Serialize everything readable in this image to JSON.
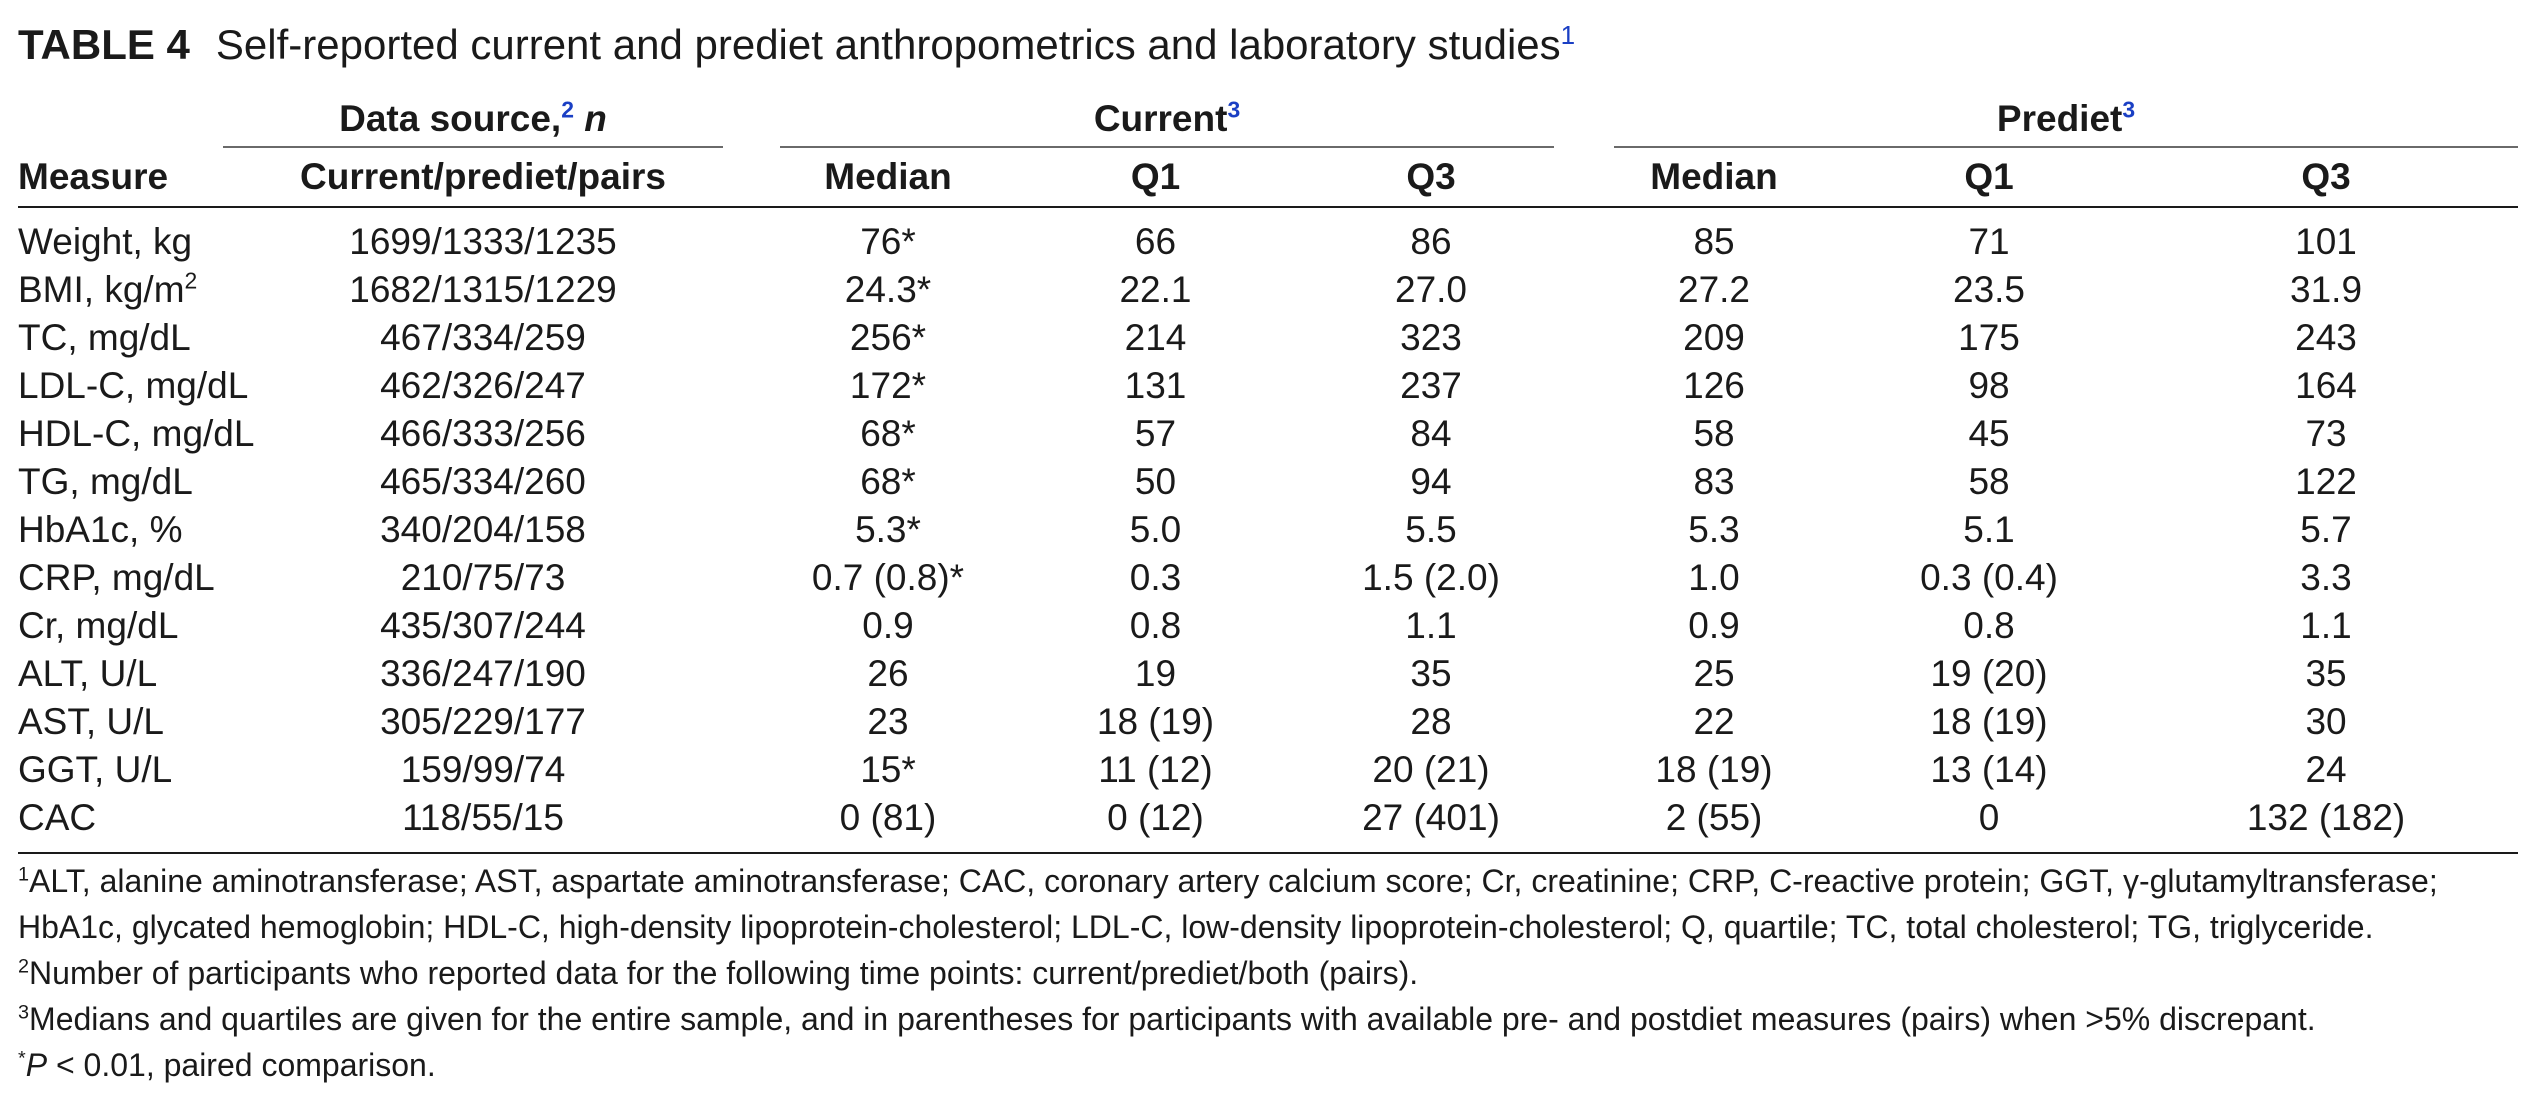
{
  "caption": {
    "label": "TABLE 4",
    "title": "Self-reported current and prediet anthropometrics and laboratory studies",
    "sup": "1"
  },
  "table": {
    "group_headers": {
      "data_source_text": "Data source,",
      "data_source_sup": "2",
      "data_source_n": "n",
      "current": "Current",
      "current_sup": "3",
      "prediet": "Prediet",
      "prediet_sup": "3"
    },
    "column_headers": {
      "measure": "Measure",
      "data_source": "Current/prediet/pairs",
      "current_median": "Median",
      "current_q1": "Q1",
      "current_q3": "Q3",
      "prediet_median": "Median",
      "prediet_q1": "Q1",
      "prediet_q3": "Q3"
    },
    "rows": [
      {
        "measure": "Weight, kg",
        "sup": "",
        "source": "1699/1333/1235",
        "cur_median": "76*",
        "cur_q1": "66",
        "cur_q3": "86",
        "pre_median": "85",
        "pre_q1": "71",
        "pre_q3": "101"
      },
      {
        "measure": "BMI, kg/m",
        "sup": "2",
        "source": "1682/1315/1229",
        "cur_median": "24.3*",
        "cur_q1": "22.1",
        "cur_q3": "27.0",
        "pre_median": "27.2",
        "pre_q1": "23.5",
        "pre_q3": "31.9"
      },
      {
        "measure": "TC, mg/dL",
        "sup": "",
        "source": "467/334/259",
        "cur_median": "256*",
        "cur_q1": "214",
        "cur_q3": "323",
        "pre_median": "209",
        "pre_q1": "175",
        "pre_q3": "243"
      },
      {
        "measure": "LDL-C, mg/dL",
        "sup": "",
        "source": "462/326/247",
        "cur_median": "172*",
        "cur_q1": "131",
        "cur_q3": "237",
        "pre_median": "126",
        "pre_q1": "98",
        "pre_q3": "164"
      },
      {
        "measure": "HDL-C, mg/dL",
        "sup": "",
        "source": "466/333/256",
        "cur_median": "68*",
        "cur_q1": "57",
        "cur_q3": "84",
        "pre_median": "58",
        "pre_q1": "45",
        "pre_q3": "73"
      },
      {
        "measure": "TG, mg/dL",
        "sup": "",
        "source": "465/334/260",
        "cur_median": "68*",
        "cur_q1": "50",
        "cur_q3": "94",
        "pre_median": "83",
        "pre_q1": "58",
        "pre_q3": "122"
      },
      {
        "measure": "HbA1c, %",
        "sup": "",
        "source": "340/204/158",
        "cur_median": "5.3*",
        "cur_q1": "5.0",
        "cur_q3": "5.5",
        "pre_median": "5.3",
        "pre_q1": "5.1",
        "pre_q3": "5.7"
      },
      {
        "measure": "CRP, mg/dL",
        "sup": "",
        "source": "210/75/73",
        "cur_median": "0.7 (0.8)*",
        "cur_q1": "0.3",
        "cur_q3": "1.5 (2.0)",
        "pre_median": "1.0",
        "pre_q1": "0.3 (0.4)",
        "pre_q3": "3.3"
      },
      {
        "measure": "Cr, mg/dL",
        "sup": "",
        "source": "435/307/244",
        "cur_median": "0.9",
        "cur_q1": "0.8",
        "cur_q3": "1.1",
        "pre_median": "0.9",
        "pre_q1": "0.8",
        "pre_q3": "1.1"
      },
      {
        "measure": "ALT, U/L",
        "sup": "",
        "source": "336/247/190",
        "cur_median": "26",
        "cur_q1": "19",
        "cur_q3": "35",
        "pre_median": "25",
        "pre_q1": "19 (20)",
        "pre_q3": "35"
      },
      {
        "measure": "AST, U/L",
        "sup": "",
        "source": "305/229/177",
        "cur_median": "23",
        "cur_q1": "18 (19)",
        "cur_q3": "28",
        "pre_median": "22",
        "pre_q1": "18 (19)",
        "pre_q3": "30"
      },
      {
        "measure": "GGT, U/L",
        "sup": "",
        "source": "159/99/74",
        "cur_median": "15*",
        "cur_q1": "11 (12)",
        "cur_q3": "20 (21)",
        "pre_median": "18 (19)",
        "pre_q1": "13 (14)",
        "pre_q3": "24"
      },
      {
        "measure": "CAC",
        "sup": "",
        "source": "118/55/15",
        "cur_median": "0 (81)",
        "cur_q1": "0 (12)",
        "cur_q3": "27 (401)",
        "pre_median": "2 (55)",
        "pre_q1": "0",
        "pre_q3": "132 (182)"
      }
    ]
  },
  "footnotes": {
    "fn1_sup": "1",
    "fn1_line1": "ALT, alanine aminotransferase; AST, aspartate aminotransferase; CAC, coronary artery calcium score; Cr, creatinine; CRP, C-reactive protein; GGT, γ-glutamyltransferase;",
    "fn1_line2": "HbA1c, glycated hemoglobin; HDL-C, high-density lipoprotein-cholesterol; LDL-C, low-density lipoprotein-cholesterol; Q, quartile; TC, total cholesterol; TG, triglyceride.",
    "fn2_sup": "2",
    "fn2": "Number of participants who reported data for the following time points: current/prediet/both (pairs).",
    "fn3_sup": "3",
    "fn3": "Medians and quartiles are given for the entire sample, and in parentheses for participants with available pre- and postdiet measures (pairs) when >5% discrepant.",
    "fn4_sup": "*",
    "fn4_p": "P",
    "fn4": " < 0.01, paired comparison."
  }
}
